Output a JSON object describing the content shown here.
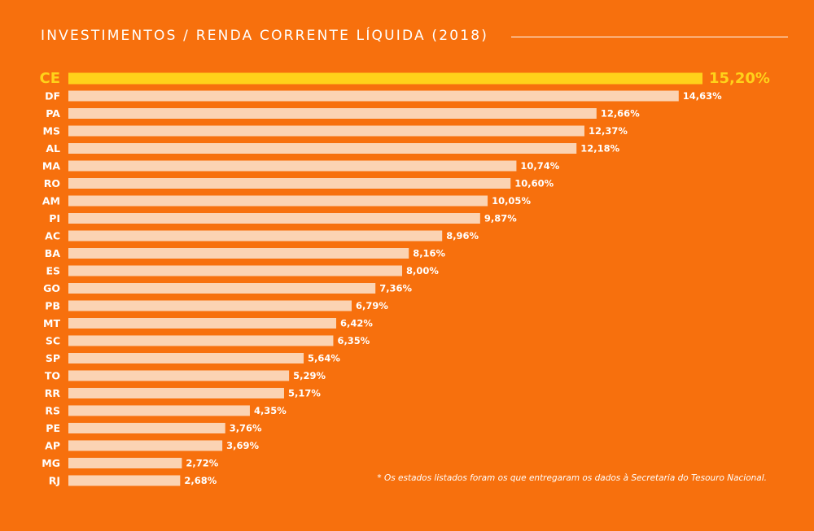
{
  "chart_data": {
    "type": "bar",
    "orientation": "horizontal",
    "title": "INVESTIMENTOS / RENDA CORRENTE LÍQUIDA (2018)",
    "categories": [
      "CE",
      "DF",
      "PA",
      "MS",
      "AL",
      "MA",
      "RO",
      "AM",
      "PI",
      "AC",
      "BA",
      "ES",
      "GO",
      "PB",
      "MT",
      "SC",
      "SP",
      "TO",
      "RR",
      "RS",
      "PE",
      "AP",
      "MG",
      "RJ"
    ],
    "values": [
      15.2,
      14.63,
      12.66,
      12.37,
      12.18,
      10.74,
      10.6,
      10.05,
      9.87,
      8.96,
      8.16,
      8.0,
      7.36,
      6.79,
      6.42,
      6.35,
      5.64,
      5.29,
      5.17,
      4.35,
      3.76,
      3.69,
      2.72,
      2.68
    ],
    "value_labels": [
      "15,20%",
      "14,63%",
      "12,66%",
      "12,37%",
      "12,18%",
      "10,74%",
      "10,60%",
      "10,05%",
      "9,87%",
      "8,96%",
      "8,16%",
      "8,00%",
      "7,36%",
      "6,79%",
      "6,42%",
      "6,35%",
      "5,64%",
      "5,29%",
      "5,17%",
      "4,35%",
      "3,76%",
      "3,69%",
      "2,72%",
      "2,68%"
    ],
    "highlight": "CE",
    "xlim": [
      0,
      15.2
    ],
    "grid": false,
    "colors": {
      "background": "#F7700D",
      "bar": "#FBD3B3",
      "highlight_bar": "#FFD21A",
      "highlight_text": "#FFD21A",
      "text": "#FFFFFF"
    }
  },
  "footnote": "* Os estados listados foram os que entregaram os dados à Secretaria do Tesouro Nacional."
}
